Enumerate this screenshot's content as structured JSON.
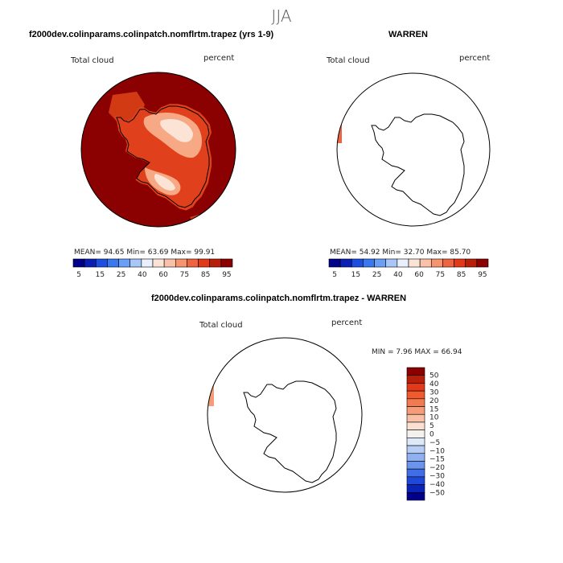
{
  "suptitle": "JJA",
  "panels": {
    "model": {
      "title": "f2000dev.colinparams.colinpatch.nomflrtm.trapez (yrs 1-9)",
      "field_label": "Total cloud",
      "units_label": "percent",
      "stats": "MEAN=  94.65   Min=  63.69   Max=  99.91"
    },
    "obs": {
      "title": "WARREN",
      "field_label": "Total cloud",
      "units_label": "percent",
      "stats": "MEAN=  54.92   Min=  32.70   Max=  85.70"
    },
    "diff": {
      "title": "f2000dev.colinparams.colinpatch.nomflrtm.trapez - WARREN",
      "field_label": "Total cloud",
      "units_label": "percent",
      "stats": "MIN =    7.96  MAX =   66.94"
    }
  },
  "abs_colorbar": {
    "colors": [
      "#00008b",
      "#0a1fb4",
      "#1f4fe0",
      "#3a78f0",
      "#6b9ef5",
      "#a9c6f8",
      "#e9f0fb",
      "#fbe4d6",
      "#f9c1a8",
      "#f5946e",
      "#ef6440",
      "#e23a18",
      "#b81f0a",
      "#8b0000"
    ],
    "tick_labels": [
      "5",
      "15",
      "25",
      "40",
      "60",
      "75",
      "85",
      "95"
    ]
  },
  "diff_colorbar": {
    "colors": [
      "#8b0000",
      "#b81f0a",
      "#e23a18",
      "#ef5a2e",
      "#f27a50",
      "#f59c78",
      "#f8c0a6",
      "#fbe0d2",
      "#f4f0ec",
      "#dde8f8",
      "#b6cdf5",
      "#8fb1f1",
      "#6b94ec",
      "#3f6ee6",
      "#1f48d8",
      "#0a24b8",
      "#00008b"
    ],
    "tick_labels": [
      "50",
      "40",
      "30",
      "20",
      "15",
      "10",
      "5",
      "0",
      "−5",
      "−10",
      "−15",
      "−20",
      "−30",
      "−40",
      "−50"
    ]
  },
  "colors": {
    "land_outline": "#000000",
    "map_circle": "#000000",
    "model_fill": "#8b0000"
  }
}
